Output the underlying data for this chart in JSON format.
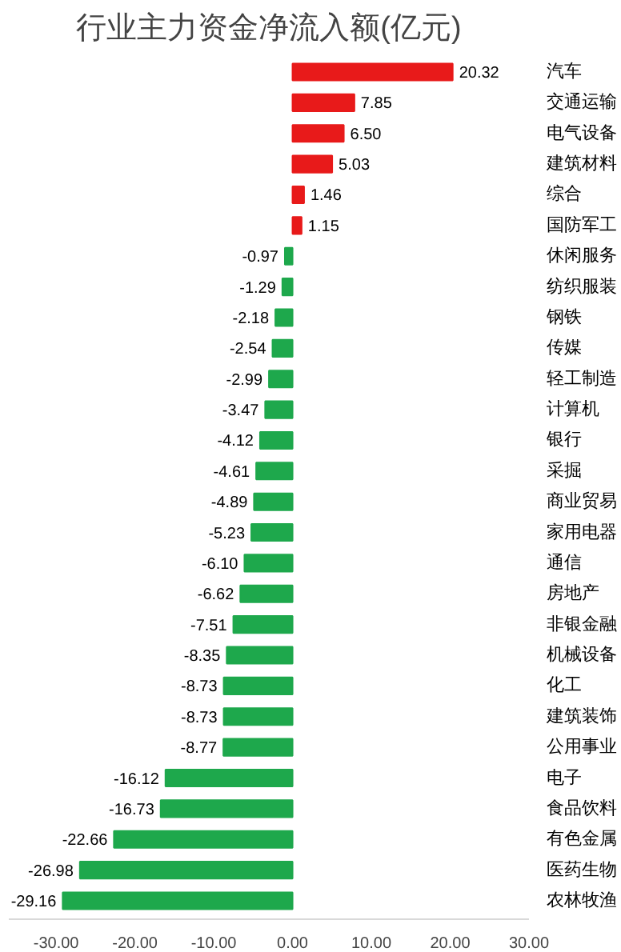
{
  "chart_data": {
    "type": "bar",
    "orientation": "horizontal",
    "title": "行业主力资金净流入额(亿元)",
    "categories": [
      "汽车",
      "交通运输",
      "电气设备",
      "建筑材料",
      "综合",
      "国防军工",
      "休闲服务",
      "纺织服装",
      "钢铁",
      "传媒",
      "轻工制造",
      "计算机",
      "银行",
      "采掘",
      "商业贸易",
      "家用电器",
      "通信",
      "房地产",
      "非银金融",
      "机械设备",
      "化工",
      "建筑装饰",
      "公用事业",
      "电子",
      "食品饮料",
      "有色金属",
      "医药生物",
      "农林牧渔"
    ],
    "values": [
      20.32,
      7.85,
      6.5,
      5.03,
      1.46,
      1.15,
      -0.97,
      -1.29,
      -2.18,
      -2.54,
      -2.99,
      -3.47,
      -4.12,
      -4.61,
      -4.89,
      -5.23,
      -6.1,
      -6.62,
      -7.51,
      -8.35,
      -8.73,
      -8.73,
      -8.77,
      -16.12,
      -16.73,
      -22.66,
      -26.98,
      -29.16
    ],
    "value_labels": [
      "20.32",
      "7.85",
      "6.50",
      "5.03",
      "1.46",
      "1.15",
      "-0.97",
      "-1.29",
      "-2.18",
      "-2.54",
      "-2.99",
      "-3.47",
      "-4.12",
      "-4.61",
      "-4.89",
      "-5.23",
      "-6.10",
      "-6.62",
      "-7.51",
      "-8.35",
      "-8.73",
      "-8.73",
      "-8.77",
      "-16.12",
      "-16.73",
      "-22.66",
      "-26.98",
      "-29.16"
    ],
    "colors": [
      "#e81a1a",
      "#e81a1a",
      "#e81a1a",
      "#e81a1a",
      "#e81a1a",
      "#e81a1a",
      "#1ea84c",
      "#1ea84c",
      "#1ea84c",
      "#1ea84c",
      "#1ea84c",
      "#1ea84c",
      "#1ea84c",
      "#1ea84c",
      "#1ea84c",
      "#1ea84c",
      "#1ea84c",
      "#1ea84c",
      "#1ea84c",
      "#1ea84c",
      "#1ea84c",
      "#1ea84c",
      "#1ea84c",
      "#1ea84c",
      "#1ea84c",
      "#1ea84c",
      "#1ea84c",
      "#1ea84c"
    ],
    "xlim": [
      -36,
      30
    ],
    "xticks": [
      {
        "value": -30,
        "label": "-30.00"
      },
      {
        "value": -20,
        "label": "-20.00"
      },
      {
        "value": -10,
        "label": "-10.00"
      },
      {
        "value": 0,
        "label": "0.00"
      },
      {
        "value": 10,
        "label": "10.00"
      },
      {
        "value": 20,
        "label": "20.00"
      },
      {
        "value": 30,
        "label": "30.00"
      }
    ],
    "grid": false
  }
}
